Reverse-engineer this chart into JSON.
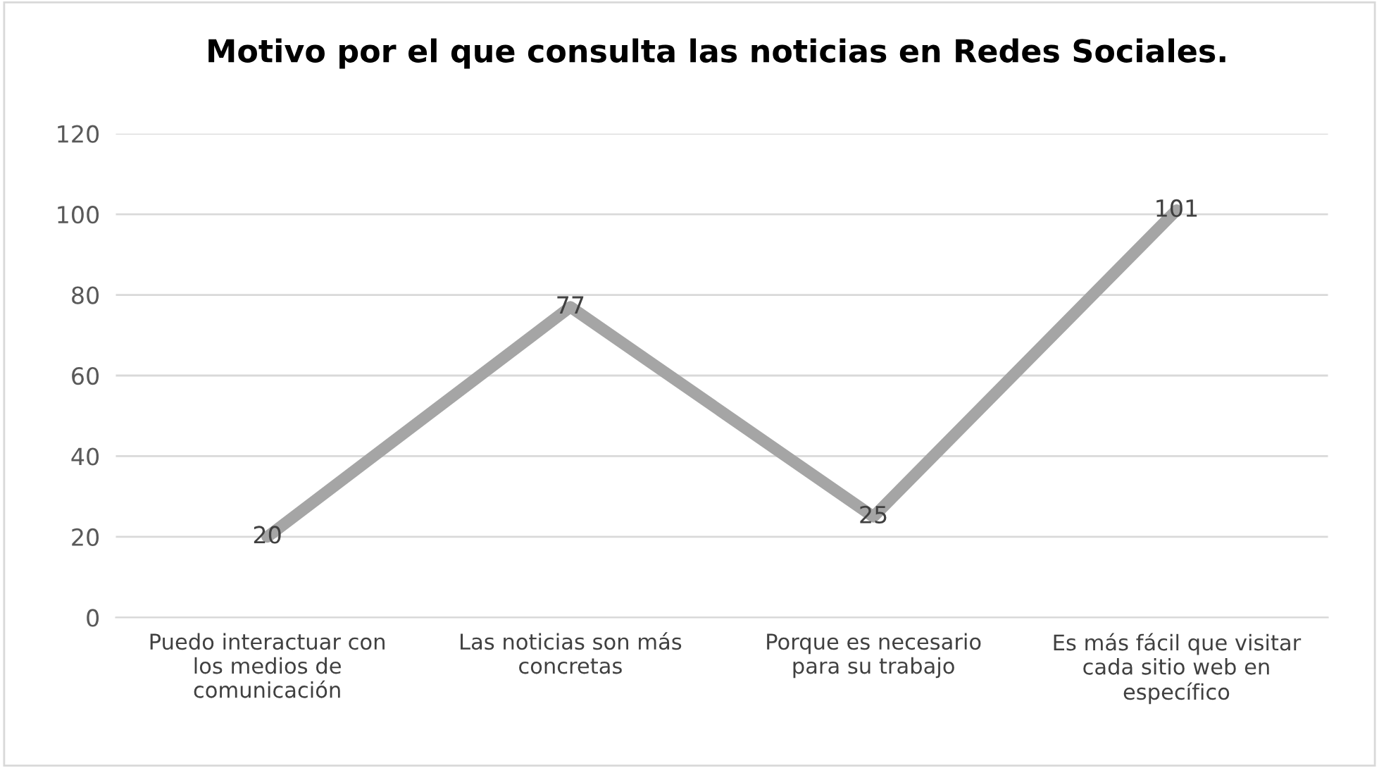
{
  "chart_data": {
    "type": "line",
    "title": "Motivo por el que consulta las noticias en Redes Sociales.",
    "categories": [
      "Puedo interactuar con\nlos medios de\ncomunicación",
      "Las noticias son más\nconcretas",
      "Porque es necesario\npara su trabajo",
      "Es más fácil que visitar\ncada sitio web en\nespecífico"
    ],
    "series": [
      {
        "color": "#a5a5a5",
        "values": [
          20,
          77,
          25,
          101
        ]
      }
    ],
    "ylim": [
      0,
      120
    ],
    "yticks": [
      0,
      20,
      40,
      60,
      80,
      100,
      120
    ],
    "grid": "y",
    "data_labels": true,
    "marker": "none",
    "line_style": "solid"
  }
}
